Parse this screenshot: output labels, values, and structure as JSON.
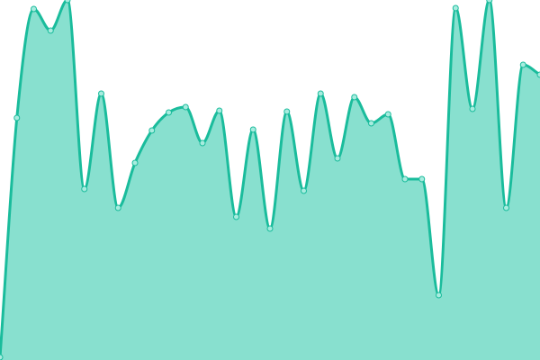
{
  "chart_data": {
    "type": "area",
    "title": "",
    "xlabel": "",
    "ylabel": "",
    "grid": false,
    "legend": "none",
    "ylim": [
      0,
      400
    ],
    "x": [
      0,
      1,
      2,
      3,
      4,
      5,
      6,
      7,
      8,
      9,
      10,
      11,
      12,
      13,
      14,
      15,
      16,
      17,
      18,
      19,
      20,
      21,
      22,
      23,
      24,
      25,
      26,
      27,
      28,
      29,
      30,
      31,
      32
    ],
    "series": [
      {
        "values": [
          3,
          269,
          390,
          366,
          400,
          190,
          296,
          169,
          219,
          255,
          275,
          281,
          241,
          277,
          159,
          256,
          146,
          276,
          188,
          296,
          224,
          292,
          263,
          273,
          201,
          201,
          72,
          391,
          279,
          400,
          169,
          328,
          317
        ]
      }
    ],
    "colors": {
      "line": "#1abc9c",
      "fill": "#88e0cf",
      "point_fill": "#a8ecdf"
    }
  }
}
